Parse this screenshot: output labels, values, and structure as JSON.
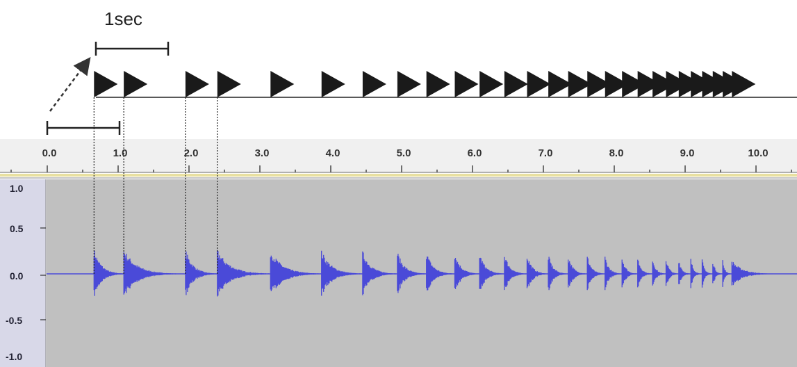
{
  "scale_label": "1sec",
  "ruler": {
    "ticks": [
      "0.0",
      "1.0",
      "2.0",
      "3.0",
      "4.0",
      "5.0",
      "6.0",
      "7.0",
      "8.0",
      "9.0",
      "10.0"
    ]
  },
  "amplitude_axis": {
    "ticks": [
      "1.0",
      "0.5",
      "0.0",
      "-0.5",
      "-1.0"
    ]
  },
  "onsets_sec": [
    0.66,
    1.08,
    1.95,
    2.4,
    3.15,
    3.87,
    4.45,
    4.94,
    5.35,
    5.75,
    6.1,
    6.45,
    6.77,
    7.07,
    7.35,
    7.62,
    7.87,
    8.11,
    8.33,
    8.54,
    8.73,
    8.91,
    9.08,
    9.24,
    9.39,
    9.53,
    9.66
  ],
  "dashed_guides_sec": [
    0.66,
    1.08,
    1.95,
    2.4
  ],
  "colors": {
    "waveform": "#4a4ad8",
    "track_background": "#c0c0c0",
    "ruler_background": "#f0f0f0",
    "timeline_marker": "#1a1a1a",
    "ruler_highlight": "#e8e0a0",
    "amplitude_panel": "#d8d8e8"
  }
}
